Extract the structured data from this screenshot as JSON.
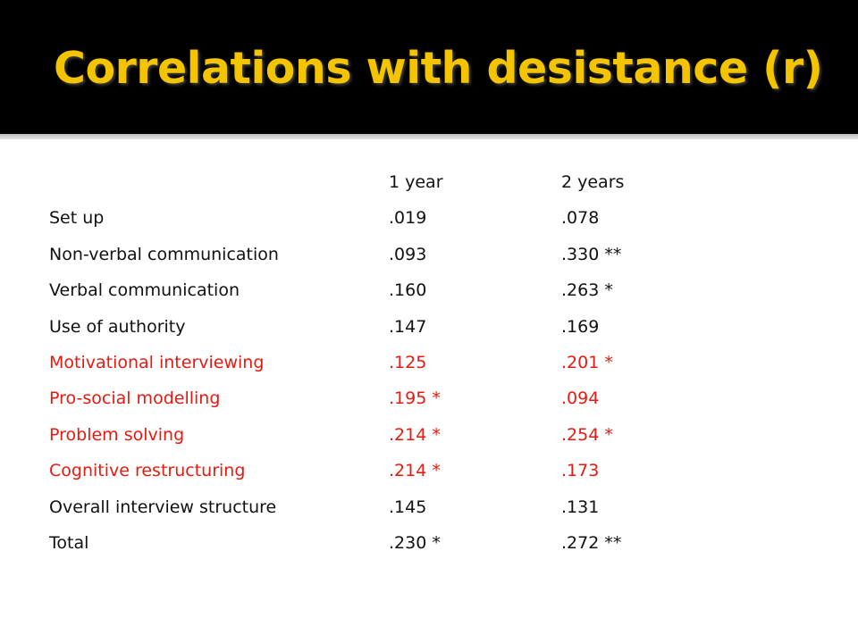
{
  "slide": {
    "title": "Correlations with desistance (r)"
  },
  "colors": {
    "title_bar": "#000000",
    "title_text": "#f5c400",
    "body_text": "#111111",
    "highlight_text": "#e8190e"
  },
  "table": {
    "headers": [
      "",
      "1 year",
      "2 years"
    ],
    "rows": [
      {
        "label": "Set up",
        "y1": ".019",
        "y2": ".078",
        "highlight": false
      },
      {
        "label": "Non-verbal communication",
        "y1": ".093",
        "y2": ".330 **",
        "highlight": false
      },
      {
        "label": "Verbal communication",
        "y1": ".160",
        "y2": ".263 *",
        "highlight": false
      },
      {
        "label": "Use of authority",
        "y1": ".147",
        "y2": ".169",
        "highlight": false
      },
      {
        "label": "Motivational interviewing",
        "y1": ".125",
        "y2": ".201 *",
        "highlight": true
      },
      {
        "label": "Pro-social modelling",
        "y1": ".195 *",
        "y2": ".094",
        "highlight": true
      },
      {
        "label": "Problem solving",
        "y1": ".214 *",
        "y2": ".254 *",
        "highlight": true
      },
      {
        "label": "Cognitive restructuring",
        "y1": ".214 *",
        "y2": ".173",
        "highlight": true
      },
      {
        "label": "Overall interview structure",
        "y1": ".145",
        "y2": ".131",
        "highlight": false
      },
      {
        "label": "Total",
        "y1": ".230 *",
        "y2": ".272 **",
        "highlight": false
      }
    ]
  }
}
